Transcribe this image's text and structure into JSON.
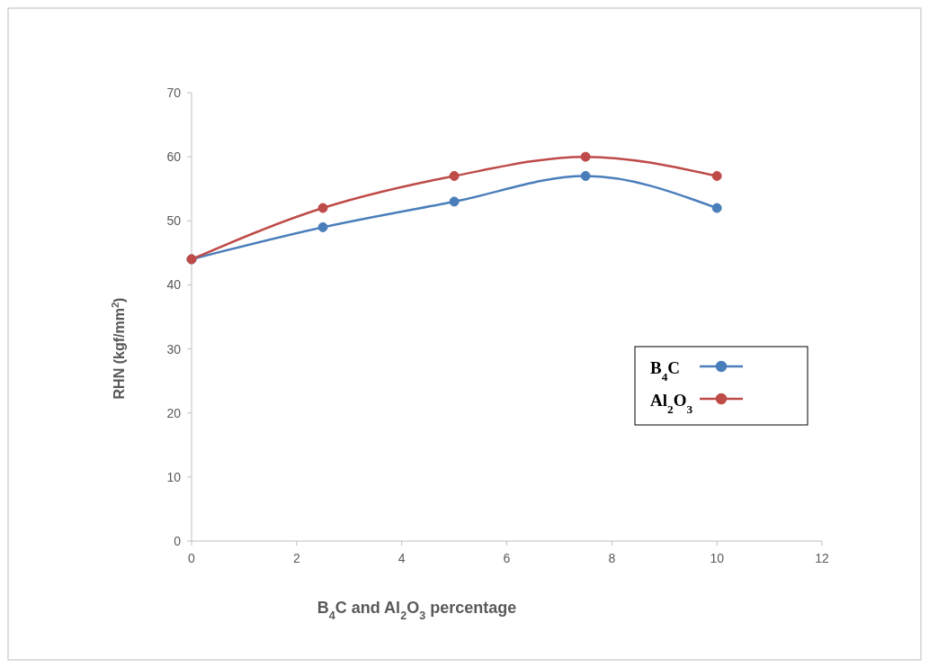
{
  "chart_data": {
    "type": "line",
    "xlabel": "B$_{4}$C and Al$_{2}$O$_{3}$ percentage",
    "ylabel": "RHN (kgf/mm$^{2}$)",
    "x": [
      0,
      2.5,
      5,
      7.5,
      10
    ],
    "series": [
      {
        "name": "B$_{4}$C",
        "color": "#4a7ebb",
        "values": [
          44,
          49,
          53,
          57,
          52
        ]
      },
      {
        "name": "Al$_{2}$O$_{3}$",
        "color": "#be4b48",
        "values": [
          44,
          52,
          57,
          60,
          57
        ]
      }
    ],
    "xlim": [
      0,
      12
    ],
    "xticks": [
      0,
      2,
      4,
      6,
      8,
      10,
      12
    ],
    "ylim": [
      0,
      70
    ],
    "yticks": [
      0,
      10,
      20,
      30,
      40,
      50,
      60,
      70
    ],
    "grid": false,
    "legend": "right",
    "marker": "circle",
    "line_style": "solid"
  }
}
